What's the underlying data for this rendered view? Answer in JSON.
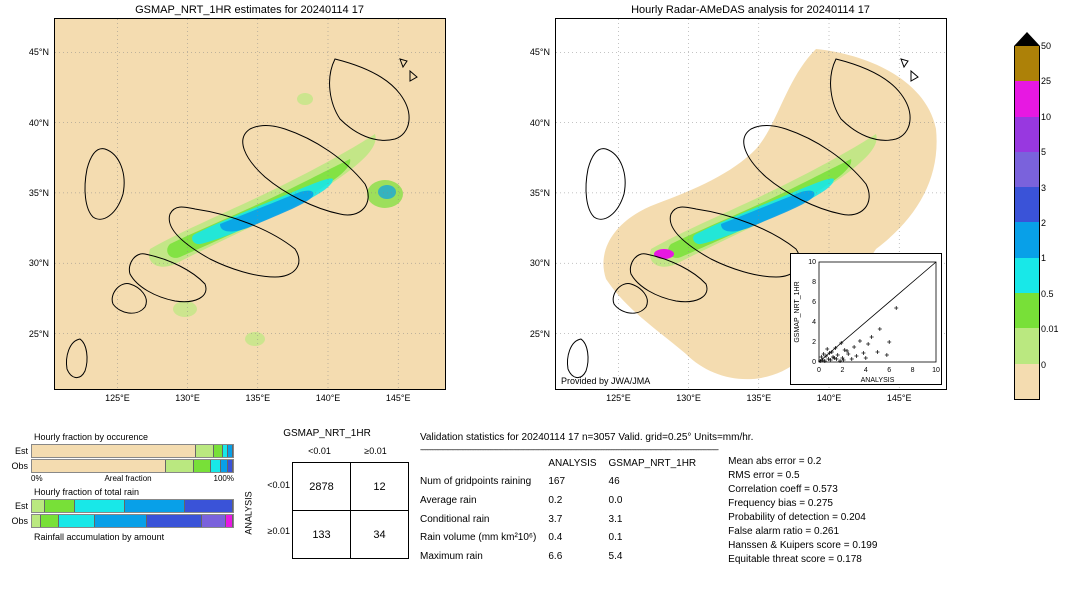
{
  "colorbar": {
    "ticks": [
      "50",
      "25",
      "10",
      "5",
      "3",
      "2",
      "1",
      "0.5",
      "0.01",
      "0"
    ],
    "colors": [
      "#ad8108",
      "#e718e2",
      "#9838e0",
      "#7a62dc",
      "#3a53d8",
      "#08a0e8",
      "#18e8e8",
      "#78e038",
      "#bae880",
      "#f4dcb0"
    ],
    "arrow_color": "#000000"
  },
  "maps": {
    "left": {
      "title": "GSMAP_NRT_1HR estimates for 20240114 17"
    },
    "right": {
      "title": "Hourly Radar-AMeDAS analysis for 20240114 17",
      "provided": "Provided by JWA/JMA"
    },
    "bg_color": "#f4dcb0",
    "y_ticks": [
      "45°N",
      "40°N",
      "35°N",
      "30°N",
      "25°N"
    ],
    "y_positions": [
      9,
      28,
      47,
      66,
      85
    ],
    "x_ticks": [
      "125°E",
      "130°E",
      "135°E",
      "140°E",
      "145°E"
    ],
    "x_positions": [
      16,
      34,
      52,
      70,
      88
    ]
  },
  "inset": {
    "ylabel": "GSMAP_NRT_1HR",
    "xlabel": "ANALYSIS",
    "ticks": [
      "0",
      "2",
      "4",
      "6",
      "8",
      "10"
    ],
    "range": [
      0,
      10
    ],
    "points": [
      [
        0.1,
        0.1
      ],
      [
        0.3,
        0.2
      ],
      [
        0.5,
        0.1
      ],
      [
        0.8,
        0.3
      ],
      [
        1.0,
        0.2
      ],
      [
        1.2,
        0.5
      ],
      [
        1.5,
        0.3
      ],
      [
        1.8,
        0.1
      ],
      [
        2.0,
        0.4
      ],
      [
        2.2,
        1.2
      ],
      [
        2.5,
        0.8
      ],
      [
        2.8,
        0.3
      ],
      [
        3.0,
        1.5
      ],
      [
        3.2,
        0.6
      ],
      [
        3.5,
        2.1
      ],
      [
        3.8,
        0.9
      ],
      [
        4.0,
        0.4
      ],
      [
        4.2,
        1.8
      ],
      [
        4.5,
        2.5
      ],
      [
        5.0,
        1.0
      ],
      [
        5.2,
        3.3
      ],
      [
        5.8,
        0.7
      ],
      [
        6.0,
        2.0
      ],
      [
        6.6,
        5.4
      ],
      [
        1.1,
        1.0
      ],
      [
        0.6,
        0.6
      ],
      [
        0.9,
        0.9
      ],
      [
        1.4,
        1.4
      ],
      [
        2.1,
        0.2
      ],
      [
        0.4,
        0.8
      ],
      [
        0.7,
        1.3
      ],
      [
        0.2,
        0.5
      ],
      [
        1.6,
        0.7
      ],
      [
        1.9,
        1.9
      ],
      [
        2.4,
        1.1
      ],
      [
        1.3,
        0.4
      ]
    ]
  },
  "fractions": {
    "occurrence": {
      "title": "Hourly fraction by occurence",
      "est": [
        {
          "w": 83,
          "c": "#f4dcb0"
        },
        {
          "w": 9,
          "c": "#bae880"
        },
        {
          "w": 4,
          "c": "#78e038"
        },
        {
          "w": 2,
          "c": "#18e8e8"
        },
        {
          "w": 2,
          "c": "#08a0e8"
        }
      ],
      "obs": [
        {
          "w": 68,
          "c": "#f4dcb0"
        },
        {
          "w": 14,
          "c": "#bae880"
        },
        {
          "w": 8,
          "c": "#78e038"
        },
        {
          "w": 5,
          "c": "#18e8e8"
        },
        {
          "w": 3,
          "c": "#08a0e8"
        },
        {
          "w": 2,
          "c": "#3a53d8"
        }
      ]
    },
    "total_rain": {
      "title": "Hourly fraction of total rain",
      "est": [
        {
          "w": 6,
          "c": "#bae880"
        },
        {
          "w": 15,
          "c": "#78e038"
        },
        {
          "w": 25,
          "c": "#18e8e8"
        },
        {
          "w": 30,
          "c": "#08a0e8"
        },
        {
          "w": 24,
          "c": "#3a53d8"
        }
      ],
      "obs": [
        {
          "w": 4,
          "c": "#bae880"
        },
        {
          "w": 9,
          "c": "#78e038"
        },
        {
          "w": 18,
          "c": "#18e8e8"
        },
        {
          "w": 26,
          "c": "#08a0e8"
        },
        {
          "w": 28,
          "c": "#3a53d8"
        },
        {
          "w": 12,
          "c": "#7a62dc"
        },
        {
          "w": 3,
          "c": "#e718e2"
        }
      ]
    },
    "est_label": "Est",
    "obs_label": "Obs",
    "axis_left": "0%",
    "axis_center": "Areal fraction",
    "axis_right": "100%",
    "accum_title": "Rainfall accumulation by amount"
  },
  "contingency": {
    "title": "GSMAP_NRT_1HR",
    "ylabel": "ANALYSIS",
    "col_labels": [
      "<0.01",
      "≥0.01"
    ],
    "row_labels": [
      "<0.01",
      "≥0.01"
    ],
    "cells": [
      [
        "2878",
        "12"
      ],
      [
        "133",
        "34"
      ]
    ]
  },
  "stats": {
    "header": "Validation statistics for 20240114 17  n=3057 Valid. grid=0.25°  Units=mm/hr.",
    "col_headers": [
      "ANALYSIS",
      "GSMAP_NRT_1HR"
    ],
    "rows": [
      {
        "label": "Num of gridpoints raining",
        "a": "167",
        "b": "46"
      },
      {
        "label": "Average rain",
        "a": "0.2",
        "b": "0.0"
      },
      {
        "label": "Conditional rain",
        "a": "3.7",
        "b": "3.1"
      },
      {
        "label": "Rain volume (mm km²10⁶)",
        "a": "0.4",
        "b": "0.1"
      },
      {
        "label": "Maximum rain",
        "a": "6.6",
        "b": "5.4"
      }
    ],
    "metrics": [
      {
        "label": "Mean abs error =",
        "v": "0.2"
      },
      {
        "label": "RMS error =",
        "v": "0.5"
      },
      {
        "label": "Correlation coeff =",
        "v": "0.573"
      },
      {
        "label": "Frequency bias =",
        "v": "0.275"
      },
      {
        "label": "Probability of detection =",
        "v": "0.204"
      },
      {
        "label": "False alarm ratio =",
        "v": "0.261"
      },
      {
        "label": "Hanssen & Kuipers score =",
        "v": "0.199"
      },
      {
        "label": "Equitable threat score =",
        "v": "0.178"
      }
    ]
  }
}
